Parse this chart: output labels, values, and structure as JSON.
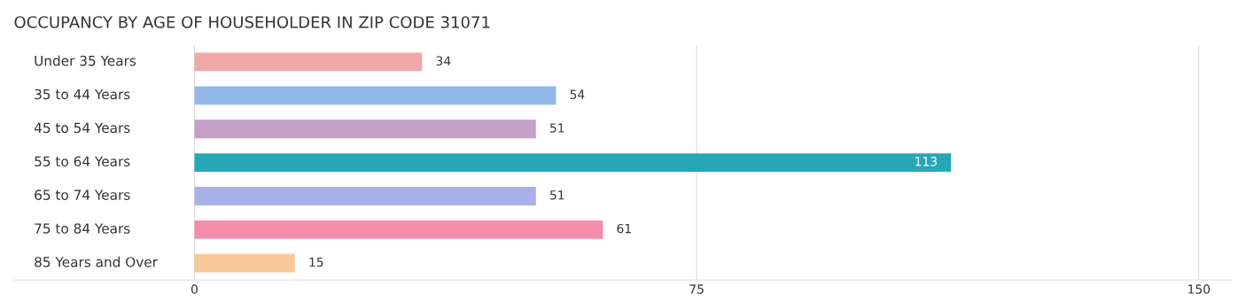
{
  "chart_data": {
    "type": "bar",
    "orientation": "horizontal",
    "title": "OCCUPANCY BY AGE OF HOUSEHOLDER IN ZIP CODE 31071",
    "categories": [
      "Under 35 Years",
      "35 to 44 Years",
      "45 to 54 Years",
      "55 to 64 Years",
      "65 to 74 Years",
      "75 to 84 Years",
      "85 Years and Over"
    ],
    "values": [
      34,
      54,
      51,
      113,
      51,
      61,
      15
    ],
    "colors": [
      "#f0a8a8",
      "#8fb8e6",
      "#c4a0c8",
      "#27a6b8",
      "#a8b0e8",
      "#f48cac",
      "#f9c89a"
    ],
    "xlim": [
      -27,
      155
    ],
    "xticks": [
      0,
      75,
      150
    ],
    "grid": "x",
    "data_labels": true
  }
}
